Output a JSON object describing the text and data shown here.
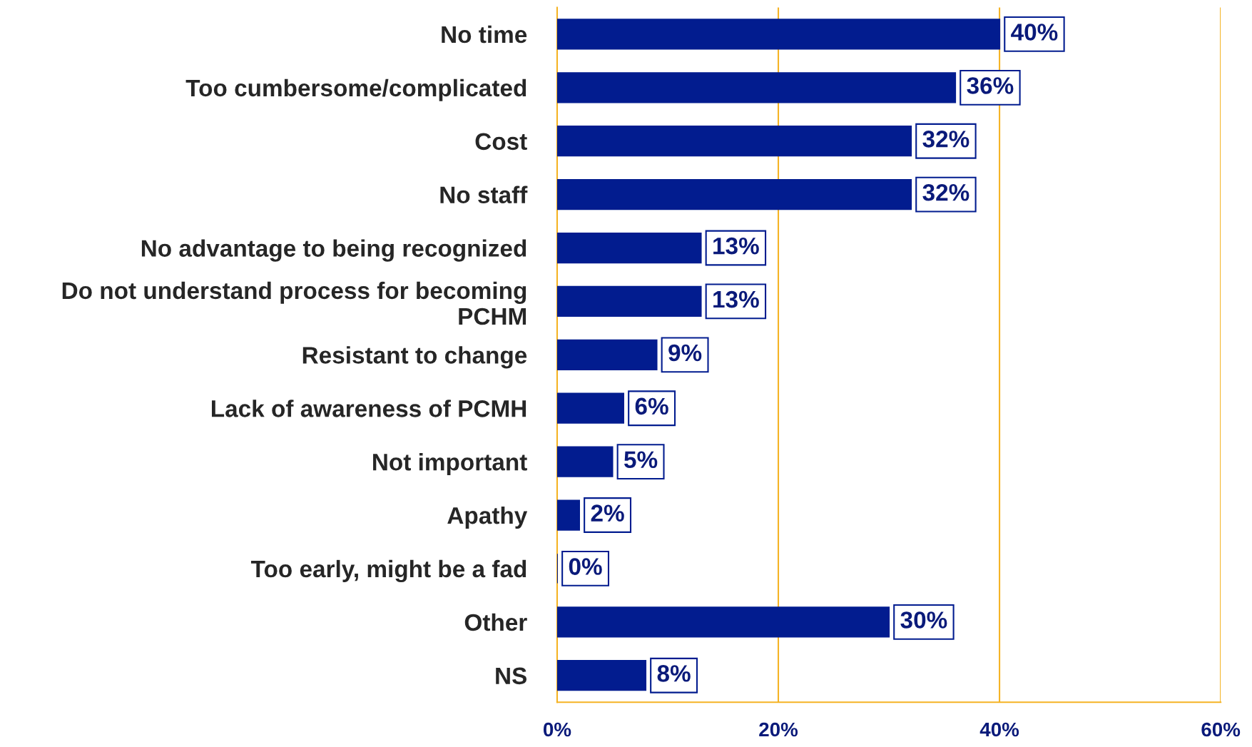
{
  "chart_data": {
    "type": "bar",
    "orientation": "horizontal",
    "categories": [
      "No time",
      "Too cumbersome/complicated",
      "Cost",
      "No staff",
      "No advantage to being recognized",
      "Do not understand process for becoming PCHM",
      "Resistant to change",
      "Lack of awareness of PCMH",
      "Not important",
      "Apathy",
      "Too early, might be a fad",
      "Other",
      "NS"
    ],
    "values": [
      40,
      36,
      32,
      32,
      13,
      13,
      9,
      6,
      5,
      2,
      0,
      30,
      8
    ],
    "value_labels": [
      "40%",
      "36%",
      "32%",
      "32%",
      "13%",
      "13%",
      "9%",
      "6%",
      "5%",
      "2%",
      "0%",
      "30%",
      "8%"
    ],
    "color": "#021c8f",
    "xlim": [
      0,
      60
    ],
    "xticks": [
      {
        "value": 0,
        "label": "0%"
      },
      {
        "value": 20,
        "label": "20%"
      },
      {
        "value": 40,
        "label": "40%"
      },
      {
        "value": 60,
        "label": "60%"
      }
    ],
    "grid": "x"
  }
}
